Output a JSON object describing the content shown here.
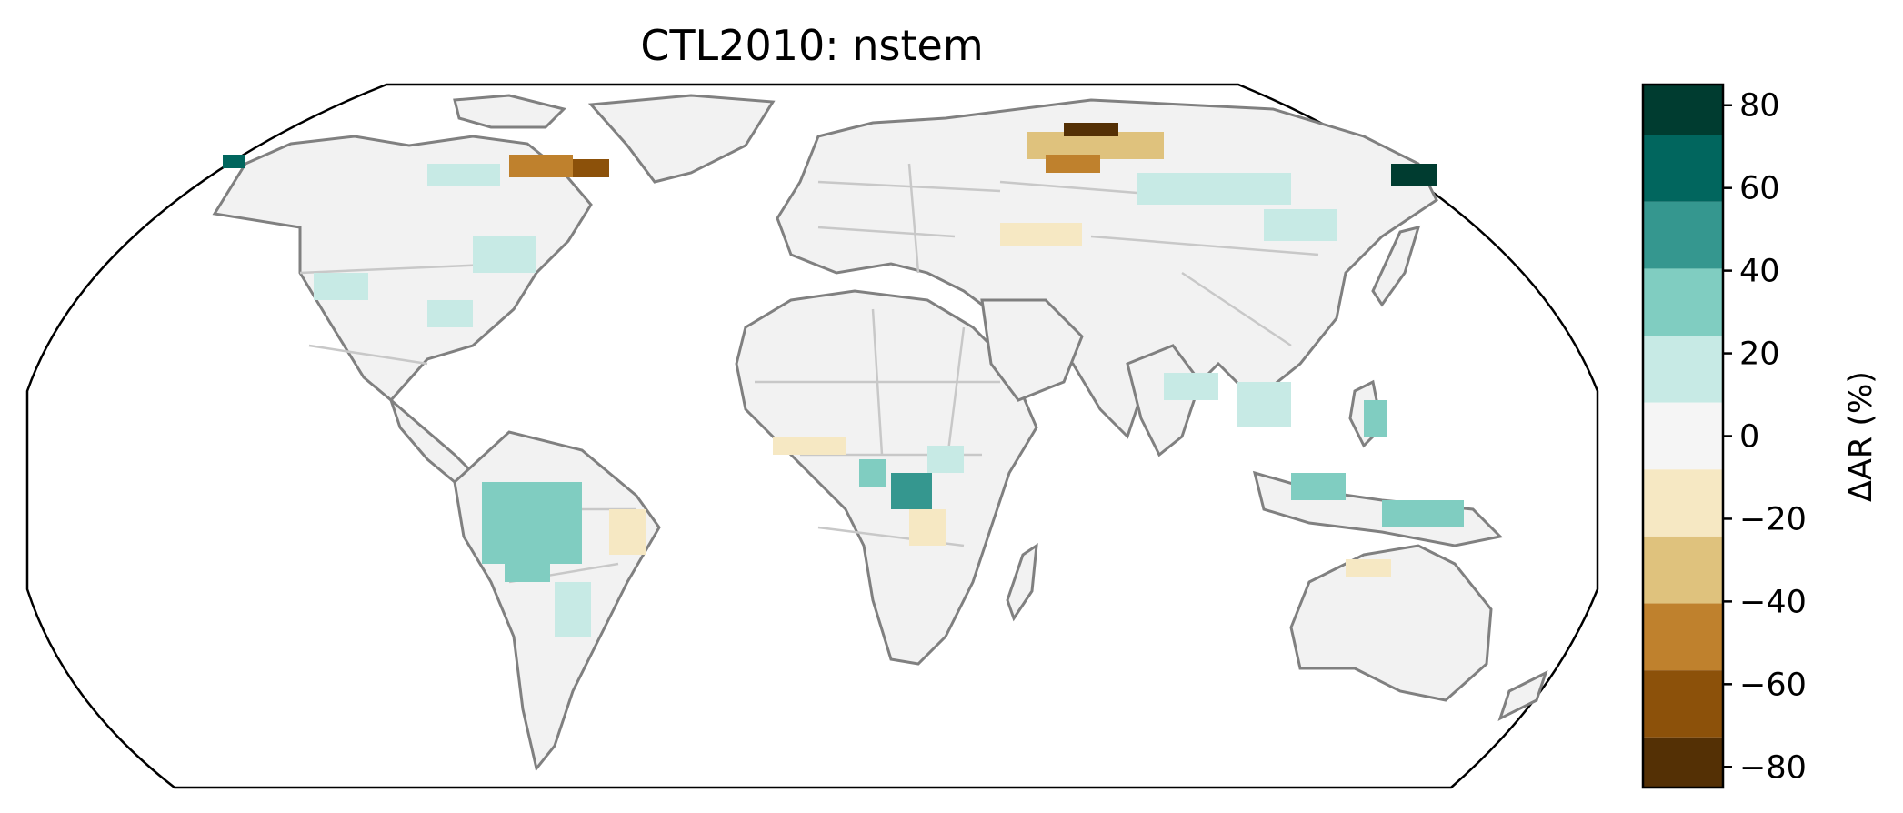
{
  "map": {
    "title": "CTL2010: nstem",
    "colorbar": {
      "label": "ΔAR (%)",
      "ticks": [
        "80",
        "60",
        "40",
        "20",
        "0",
        "−20",
        "−40",
        "−60",
        "−80"
      ],
      "bins": [
        {
          "range": "70 to 85",
          "color": "#003c30"
        },
        {
          "range": "50 to 70",
          "color": "#01665e"
        },
        {
          "range": "30 to 50",
          "color": "#35978f"
        },
        {
          "range": "10 to 30",
          "color": "#80cdc1"
        },
        {
          "range": "3 to 10",
          "color": "#c7eae5"
        },
        {
          "range": "-3 to 3",
          "color": "#f5f5f5"
        },
        {
          "range": "-10 to -3",
          "color": "#f6e8c3"
        },
        {
          "range": "-30 to -10",
          "color": "#dfc27d"
        },
        {
          "range": "-50 to -30",
          "color": "#bf812d"
        },
        {
          "range": "-70 to -50",
          "color": "#8c510a"
        },
        {
          "range": "-85 to -70",
          "color": "#543005"
        }
      ]
    },
    "colors": {
      "coast": "#808080",
      "border": "#c8c8c8",
      "land": "#f2f2f2",
      "frame": "#000000"
    }
  }
}
